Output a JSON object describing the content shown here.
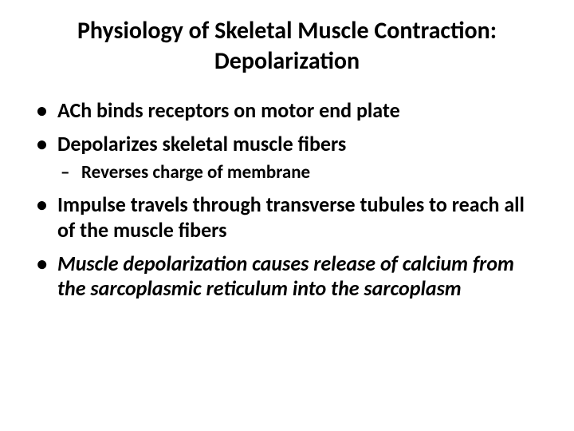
{
  "title": "Physiology of Skeletal Muscle Contraction: Depolarization",
  "bullets": [
    {
      "text": "ACh binds receptors on motor end plate",
      "italic": false
    },
    {
      "text": "Depolarizes skeletal muscle fibers",
      "italic": false,
      "sub": [
        {
          "text": "Reverses charge of membrane"
        }
      ]
    },
    {
      "text": "Impulse travels through transverse tubules to reach all of the muscle fibers",
      "italic": false
    },
    {
      "text": "Muscle depolarization causes release of calcium from the sarcoplasmic reticulum into the sarcoplasm",
      "italic": true
    }
  ],
  "colors": {
    "background": "#ffffff",
    "text": "#000000"
  },
  "typography": {
    "title_fontsize": 30,
    "bullet_fontsize": 26,
    "sub_bullet_fontsize": 23,
    "font_family": "Calibri",
    "title_weight": 700,
    "bullet_weight": 600
  }
}
